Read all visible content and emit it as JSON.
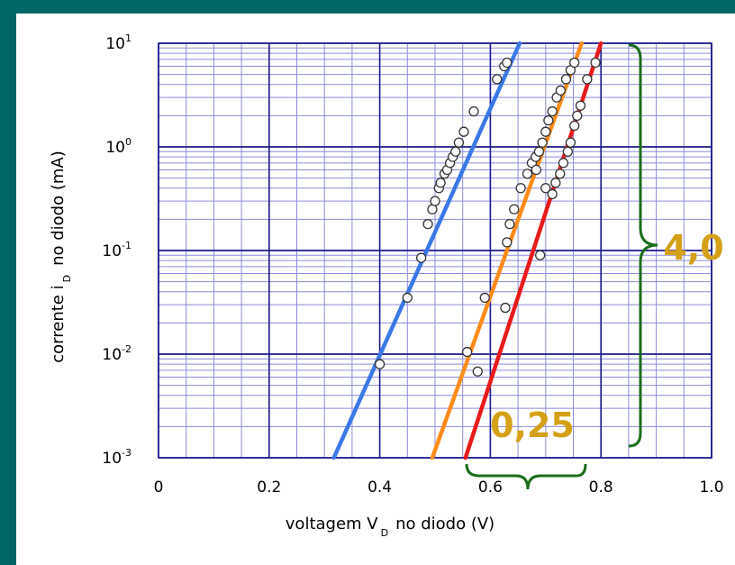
{
  "chart_data": {
    "type": "scatter",
    "xlabel": "voltagem V",
    "xlabel_sub": "D",
    "xlabel_suffix": "no diodo (V)",
    "ylabel": "corrente i",
    "ylabel_sub": "D",
    "ylabel_suffix": "no diodo (mA)",
    "xlim": [
      0,
      1.0
    ],
    "ylim": [
      0.001,
      10
    ],
    "yscale": "log",
    "grid": true,
    "x_ticks": [
      "0",
      "0.2",
      "0.4",
      "0.6",
      "0.8",
      "1.0"
    ],
    "y_ticks": [
      {
        "base": "10",
        "exp": "1"
      },
      {
        "base": "10",
        "exp": "0"
      },
      {
        "base": "10",
        "exp": "-1"
      },
      {
        "base": "10",
        "exp": "-2"
      },
      {
        "base": "10",
        "exp": "-3"
      }
    ],
    "series": [
      {
        "color": "#3a78e8",
        "line": [
          [
            0.317,
            0.001
          ],
          [
            0.653,
            10
          ]
        ],
        "points": [
          [
            0.4,
            0.008
          ],
          [
            0.45,
            0.035
          ],
          [
            0.475,
            0.085
          ],
          [
            0.487,
            0.18
          ],
          [
            0.495,
            0.25
          ],
          [
            0.5,
            0.3
          ],
          [
            0.507,
            0.4
          ],
          [
            0.51,
            0.45
          ],
          [
            0.517,
            0.55
          ],
          [
            0.522,
            0.6
          ],
          [
            0.527,
            0.7
          ],
          [
            0.532,
            0.8
          ],
          [
            0.537,
            0.9
          ],
          [
            0.543,
            1.1
          ],
          [
            0.552,
            1.4
          ],
          [
            0.57,
            2.2
          ],
          [
            0.612,
            4.5
          ],
          [
            0.625,
            6.0
          ],
          [
            0.63,
            6.5
          ]
        ]
      },
      {
        "color": "#ff8c1a",
        "line": [
          [
            0.495,
            0.001
          ],
          [
            0.765,
            10
          ]
        ],
        "points": [
          [
            0.558,
            0.0105
          ],
          [
            0.59,
            0.035
          ],
          [
            0.63,
            0.12
          ],
          [
            0.635,
            0.18
          ],
          [
            0.643,
            0.25
          ],
          [
            0.655,
            0.4
          ],
          [
            0.667,
            0.55
          ],
          [
            0.675,
            0.7
          ],
          [
            0.682,
            0.8
          ],
          [
            0.688,
            0.9
          ],
          [
            0.694,
            1.1
          ],
          [
            0.7,
            1.4
          ],
          [
            0.705,
            1.8
          ],
          [
            0.712,
            2.2
          ],
          [
            0.72,
            3.0
          ],
          [
            0.727,
            3.5
          ],
          [
            0.737,
            4.5
          ],
          [
            0.745,
            5.5
          ],
          [
            0.752,
            6.5
          ]
        ]
      },
      {
        "color": "#e81a1a",
        "line": [
          [
            0.555,
            0.001
          ],
          [
            0.8,
            10
          ]
        ],
        "points": [
          [
            0.577,
            0.0068
          ],
          [
            0.627,
            0.028
          ],
          [
            0.69,
            0.09
          ],
          [
            0.683,
            0.6
          ],
          [
            0.7,
            0.4
          ],
          [
            0.712,
            0.35
          ],
          [
            0.718,
            0.45
          ],
          [
            0.726,
            0.55
          ],
          [
            0.732,
            0.7
          ],
          [
            0.74,
            0.9
          ],
          [
            0.745,
            1.1
          ],
          [
            0.752,
            1.6
          ],
          [
            0.757,
            2.0
          ],
          [
            0.763,
            2.5
          ],
          [
            0.775,
            4.5
          ],
          [
            0.79,
            6.5
          ]
        ]
      }
    ],
    "annotations": [
      {
        "text": "0,25",
        "color": "#d4a017"
      },
      {
        "text": "4,0",
        "color": "#d4a017"
      }
    ],
    "brace_color": "#1a6e1a"
  }
}
